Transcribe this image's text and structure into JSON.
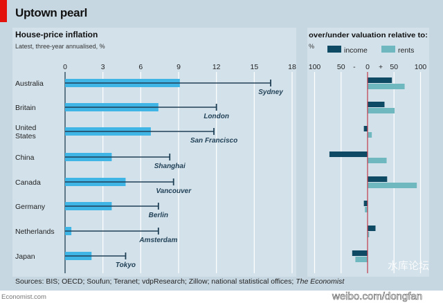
{
  "title": "Uptown pearl",
  "sources": "Sources: BIS; OECD; Soufun; Teranet; vdpResearch; Zillow; national statistical offices; ",
  "sources_italic": "The Economist",
  "footer": "Economist.com",
  "watermark": [
    "水库论坛",
    "weibo.com/dongfan"
  ],
  "colors": {
    "accent": "#e3120b",
    "national_bar": "#3fb5e6",
    "city_line": "#1f3f55",
    "income": "#0e4a63",
    "rents": "#6fb8bf",
    "zero_line": "#c0394b"
  },
  "chart_data": [
    {
      "type": "bar",
      "title": "House-price inflation",
      "subtitle": "Latest, three-year annualised, %",
      "orientation": "horizontal",
      "categories": [
        "Australia",
        "Britain",
        "United States",
        "China",
        "Canada",
        "Germany",
        "Netherlands",
        "Japan"
      ],
      "category_labels": [
        [
          "Australia"
        ],
        [
          "Britain"
        ],
        [
          "United",
          "States"
        ],
        [
          "China"
        ],
        [
          "Canada"
        ],
        [
          "Germany"
        ],
        [
          "Netherlands"
        ],
        [
          "Japan"
        ]
      ],
      "series": [
        {
          "values": [
            9.1,
            7.4,
            6.8,
            3.7,
            4.8,
            3.7,
            0.5,
            2.1
          ]
        },
        {
          "labels": [
            "Sydney",
            "London",
            "San Francisco",
            "Shanghai",
            "Vancouver",
            "Berlin",
            "Amsterdam",
            "Tokyo"
          ],
          "values": [
            16.3,
            12.0,
            11.8,
            8.3,
            8.6,
            7.4,
            7.4,
            4.8
          ]
        }
      ],
      "xlim": [
        0,
        18
      ],
      "xticks": [
        0,
        3,
        6,
        9,
        12,
        15,
        18
      ],
      "grid": true
    },
    {
      "type": "bar",
      "title": "over/under valuation relative to:",
      "unit": "%",
      "orientation": "horizontal",
      "categories": [
        "Australia",
        "Britain",
        "United States",
        "China",
        "Canada",
        "Germany",
        "Netherlands",
        "Japan"
      ],
      "series": [
        {
          "name": "income",
          "values": [
            46,
            32,
            -7,
            -72,
            37,
            -7,
            15,
            -29
          ]
        },
        {
          "name": "rents",
          "values": [
            70,
            51,
            8,
            36,
            93,
            -5,
            3,
            -23
          ]
        }
      ],
      "xlim": [
        -100,
        100
      ],
      "xticks": [
        {
          "v": -100,
          "label": "100"
        },
        {
          "v": -50,
          "label": "50"
        },
        {
          "v": -25,
          "label": "-"
        },
        {
          "v": 0,
          "label": "0"
        },
        {
          "v": 25,
          "label": "+"
        },
        {
          "v": 50,
          "label": "50"
        },
        {
          "v": 100,
          "label": "100"
        }
      ],
      "legend": "top",
      "grid": true
    }
  ]
}
